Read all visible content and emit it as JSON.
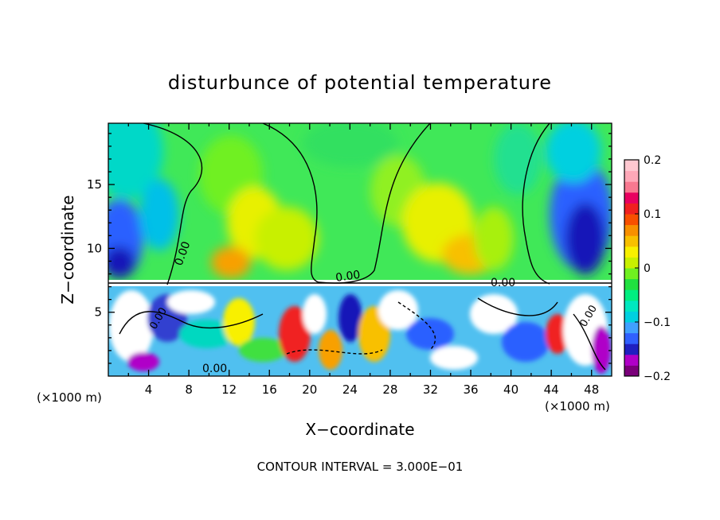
{
  "chart_data": {
    "type": "heatmap",
    "title": "disturbunce of potential temperature",
    "xlabel": "X−coordinate",
    "ylabel": "Z−coordinate",
    "x_unit": "(×1000 m)",
    "x_unit_right": "(×1000 m)",
    "xlim": [
      0,
      50
    ],
    "ylim": [
      0,
      19.8
    ],
    "x_ticks": [
      4,
      8,
      12,
      16,
      20,
      24,
      28,
      32,
      36,
      40,
      44,
      48
    ],
    "x_tick_labels": [
      "4",
      "8",
      "12",
      "16",
      "20",
      "24",
      "28",
      "32",
      "36",
      "40",
      "44",
      "48"
    ],
    "y_ticks": [
      5,
      10,
      15
    ],
    "y_tick_labels": [
      "5",
      "10",
      "15"
    ],
    "contour_interval_text": "CONTOUR INTERVAL = 3.000E−01",
    "contour_labels": [
      "0.00",
      "0.00",
      "0.00",
      "0.00",
      "0.00",
      "0.00"
    ],
    "colorbar": {
      "min": -0.2,
      "max": 0.2,
      "ticks": [
        0.2,
        0.1,
        0,
        -0.1,
        -0.2
      ],
      "tick_labels": [
        "0.2",
        "0.1",
        "0",
        "−0.1",
        "−0.2"
      ],
      "colors": [
        "#7a007a",
        "#b000c8",
        "#2020c0",
        "#3060ff",
        "#40a0ff",
        "#00d0e0",
        "#00e8c0",
        "#00ee80",
        "#20e040",
        "#70f020",
        "#c8f000",
        "#f8f000",
        "#f8c000",
        "#f89000",
        "#f85000",
        "#f02020",
        "#e80060",
        "#f87890",
        "#ffa8b8",
        "#ffc8d0"
      ]
    }
  }
}
